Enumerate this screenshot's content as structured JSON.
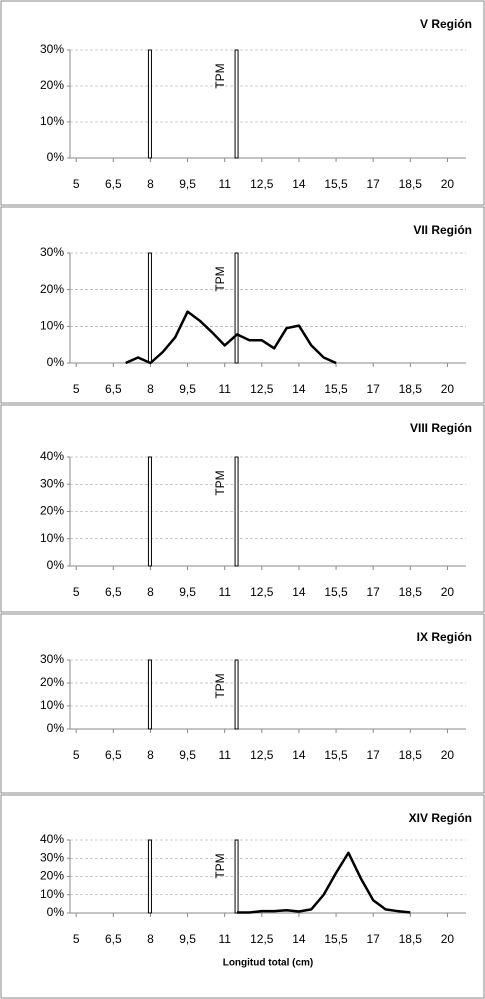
{
  "chart_data": [
    {
      "type": "line",
      "title": "V Región",
      "ylim": [
        0,
        30
      ],
      "yticks": [
        {
          "value": 0,
          "label": "0%"
        },
        {
          "value": 10,
          "label": "10%"
        },
        {
          "value": 20,
          "label": "20%"
        },
        {
          "value": 30,
          "label": "30%"
        }
      ],
      "xlim": [
        4.75,
        20.75
      ],
      "xticks": [
        5,
        {
          "value": 6.5,
          "label": "6,5"
        },
        8,
        {
          "value": 9.5,
          "label": "9,5"
        },
        11,
        {
          "value": 12.5,
          "label": "12,5"
        },
        14,
        {
          "value": 15.5,
          "label": "15,5"
        },
        17,
        {
          "value": 18.5,
          "label": "18,5"
        },
        20
      ],
      "grid": true,
      "reference_lines": [
        {
          "x": 8
        },
        {
          "x": 11.5,
          "label": "TPM"
        }
      ]
    },
    {
      "type": "line",
      "title": "VII Región",
      "color": "#000000",
      "x": [
        7,
        7.5,
        8,
        8.5,
        9,
        9.5,
        10,
        10.5,
        11,
        11.5,
        12,
        12.5,
        13,
        13.5,
        14,
        14.5,
        15,
        15.5
      ],
      "values": [
        0,
        1.5,
        0,
        3,
        7,
        14,
        11.5,
        8.3,
        4.8,
        7.8,
        6.2,
        6.2,
        4,
        9.5,
        10.2,
        4.8,
        1.5,
        0
      ],
      "ylim": [
        0,
        30
      ],
      "yticks": [
        {
          "value": 0,
          "label": "0%"
        },
        {
          "value": 10,
          "label": "10%"
        },
        {
          "value": 20,
          "label": "20%"
        },
        {
          "value": 30,
          "label": "30%"
        }
      ],
      "xlim": [
        4.75,
        20.75
      ],
      "xticks": [
        5,
        {
          "value": 6.5,
          "label": "6,5"
        },
        8,
        {
          "value": 9.5,
          "label": "9,5"
        },
        11,
        {
          "value": 12.5,
          "label": "12,5"
        },
        14,
        {
          "value": 15.5,
          "label": "15,5"
        },
        17,
        {
          "value": 18.5,
          "label": "18,5"
        },
        20
      ],
      "grid": true,
      "reference_lines": [
        {
          "x": 8
        },
        {
          "x": 11.5,
          "label": "TPM"
        }
      ]
    },
    {
      "type": "line",
      "title": "VIII Región",
      "ylim": [
        0,
        40
      ],
      "yticks": [
        {
          "value": 0,
          "label": "0%"
        },
        {
          "value": 10,
          "label": "10%"
        },
        {
          "value": 20,
          "label": "20%"
        },
        {
          "value": 30,
          "label": "30%"
        },
        {
          "value": 40,
          "label": "40%"
        }
      ],
      "xlim": [
        4.75,
        20.75
      ],
      "xticks": [
        5,
        {
          "value": 6.5,
          "label": "6,5"
        },
        8,
        {
          "value": 9.5,
          "label": "9,5"
        },
        11,
        {
          "value": 12.5,
          "label": "12,5"
        },
        14,
        {
          "value": 15.5,
          "label": "15,5"
        },
        17,
        {
          "value": 18.5,
          "label": "18,5"
        },
        20
      ],
      "grid": true,
      "reference_lines": [
        {
          "x": 8
        },
        {
          "x": 11.5,
          "label": "TPM"
        }
      ]
    },
    {
      "type": "line",
      "title": "IX Región",
      "ylim": [
        0,
        30
      ],
      "yticks": [
        {
          "value": 0,
          "label": "0%"
        },
        {
          "value": 10,
          "label": "10%"
        },
        {
          "value": 20,
          "label": "20%"
        },
        {
          "value": 30,
          "label": "30%"
        }
      ],
      "xlim": [
        4.75,
        20.75
      ],
      "xticks": [
        5,
        {
          "value": 6.5,
          "label": "6,5"
        },
        8,
        {
          "value": 9.5,
          "label": "9,5"
        },
        11,
        {
          "value": 12.5,
          "label": "12,5"
        },
        14,
        {
          "value": 15.5,
          "label": "15,5"
        },
        17,
        {
          "value": 18.5,
          "label": "18,5"
        },
        20
      ],
      "grid": true,
      "reference_lines": [
        {
          "x": 8
        },
        {
          "x": 11.5,
          "label": "TPM"
        }
      ]
    },
    {
      "type": "line",
      "title": "XIV Región",
      "color": "#000000",
      "x_label": "Longitud total (cm)",
      "x": [
        11.5,
        12,
        12.5,
        13,
        13.5,
        14,
        14.5,
        15,
        15.5,
        16,
        16.5,
        17,
        17.5,
        18,
        18.5
      ],
      "values": [
        0.3,
        0.3,
        1,
        1,
        1.5,
        0.8,
        2,
        10,
        22,
        33,
        19,
        7,
        2,
        1,
        0.3
      ],
      "ylim": [
        0,
        40
      ],
      "yticks": [
        {
          "value": 0,
          "label": "0%"
        },
        {
          "value": 10,
          "label": "10%"
        },
        {
          "value": 20,
          "label": "20%"
        },
        {
          "value": 30,
          "label": "30%"
        },
        {
          "value": 40,
          "label": "40%"
        }
      ],
      "xlim": [
        4.75,
        20.75
      ],
      "xticks": [
        5,
        {
          "value": 6.5,
          "label": "6,5"
        },
        8,
        {
          "value": 9.5,
          "label": "9,5"
        },
        11,
        {
          "value": 12.5,
          "label": "12,5"
        },
        14,
        {
          "value": 15.5,
          "label": "15,5"
        },
        17,
        {
          "value": 18.5,
          "label": "18,5"
        },
        20
      ],
      "grid": true,
      "reference_lines": [
        {
          "x": 8
        },
        {
          "x": 11.5,
          "label": "TPM"
        }
      ]
    }
  ]
}
